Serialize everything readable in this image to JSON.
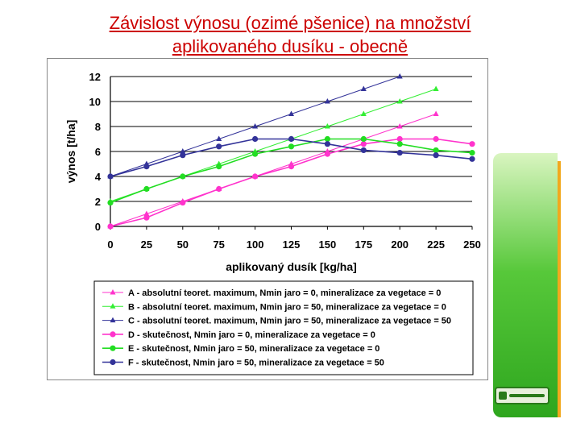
{
  "slide": {
    "title_line1": "Závislost výnosu (ozimé pšenice) na množství",
    "title_line2": "aplikovaného dusíku - obecně",
    "logo_icon": "leading-farmers-logo-icon"
  },
  "colors": {
    "title": "#cc0000",
    "accent_green": "#3fbf2a",
    "accent_orange": "#f2a81d"
  },
  "chart_data": {
    "type": "line",
    "xlabel": "aplikovaný dusík [kg/ha]",
    "ylabel": "výnos [t/ha]",
    "x_ticks": [
      0,
      25,
      50,
      75,
      100,
      125,
      150,
      175,
      200,
      225,
      250
    ],
    "y_ticks": [
      0,
      2,
      4,
      6,
      8,
      10,
      12
    ],
    "xlim": [
      0,
      250
    ],
    "ylim": [
      0,
      12
    ],
    "grid": "horizontal",
    "legend_position": "bottom",
    "series": [
      {
        "name": "A - absolutní teoret. maximum, Nmin jaro = 0, mineralizace za vegetace = 0",
        "color": "#ff33cc",
        "marker": "triangle",
        "x": [
          0,
          25,
          50,
          75,
          100,
          125,
          150,
          175,
          200,
          225
        ],
        "y": [
          0,
          1,
          2,
          3,
          4,
          5,
          6,
          7,
          8,
          9
        ]
      },
      {
        "name": "B - absolutní teoret. maximum, Nmin jaro = 50, mineralizace za vegetace = 0",
        "color": "#33ee33",
        "marker": "triangle",
        "x": [
          0,
          25,
          50,
          75,
          100,
          125,
          150,
          175,
          200,
          225
        ],
        "y": [
          2,
          3,
          4,
          5,
          6,
          7,
          8,
          9,
          10,
          11
        ]
      },
      {
        "name": "C - absolutní teoret. maximum, Nmin jaro = 50, mineralizace za vegetace = 50",
        "color": "#333399",
        "marker": "triangle",
        "x": [
          0,
          25,
          50,
          75,
          100,
          125,
          150,
          175,
          200
        ],
        "y": [
          4,
          5,
          6,
          7,
          8,
          9,
          10,
          11,
          12
        ]
      },
      {
        "name": "D - skutečnost, Nmin jaro = 0, mineralizace za vegetace = 0",
        "color": "#ff33cc",
        "marker": "circle",
        "x": [
          0,
          25,
          50,
          75,
          100,
          125,
          150,
          175,
          200,
          225,
          250
        ],
        "y": [
          0,
          0.7,
          1.9,
          3.0,
          4.0,
          4.8,
          5.8,
          6.6,
          7.0,
          7.0,
          6.6
        ]
      },
      {
        "name": "E - skutečnost, Nmin jaro = 50, mineralizace za vegetace = 0",
        "color": "#22dd22",
        "marker": "circle",
        "x": [
          0,
          25,
          50,
          75,
          100,
          125,
          150,
          175,
          200,
          225,
          250
        ],
        "y": [
          1.9,
          3.0,
          4.0,
          4.8,
          5.8,
          6.4,
          7.0,
          7.0,
          6.6,
          6.1,
          5.9
        ]
      },
      {
        "name": "F - skutečnost, Nmin jaro = 50, mineralizace za vegetace = 50",
        "color": "#333399",
        "marker": "circle",
        "x": [
          0,
          25,
          50,
          75,
          100,
          125,
          150,
          175,
          200,
          225,
          250
        ],
        "y": [
          4.0,
          4.8,
          5.7,
          6.4,
          7.0,
          7.0,
          6.6,
          6.1,
          5.9,
          5.7,
          5.4
        ]
      }
    ]
  }
}
